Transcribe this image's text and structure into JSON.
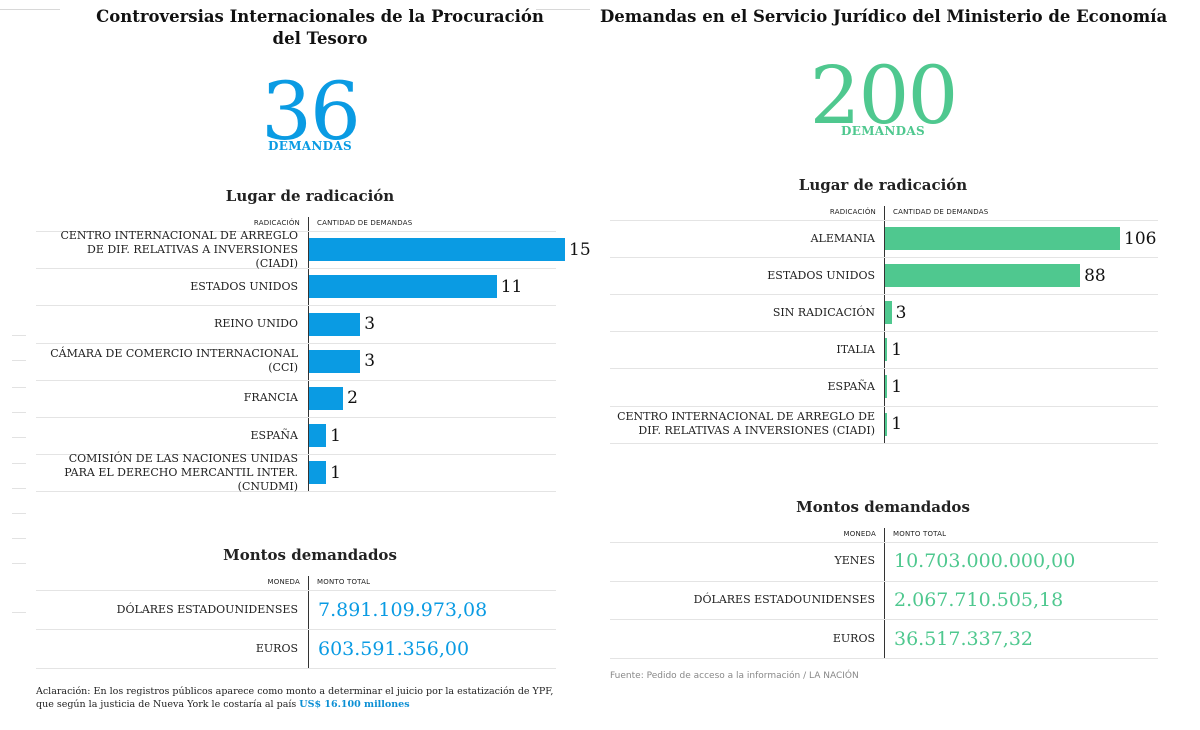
{
  "chart_data": [
    {
      "type": "bar",
      "orientation": "horizontal",
      "title": "Controversias Internacionales de la Procuración del Tesoro",
      "headline_value": "36",
      "headline_label": "DEMANDAS",
      "section_title": "Lugar de radicación",
      "category_header": "RADICACIÓN",
      "value_header": "CANTIDAD DE DEMANDAS",
      "color": "#0a9be3",
      "categories": [
        "CENTRO INTERNACIONAL DE ARREGLO DE DIF. RELATIVAS A INVERSIONES (CIADI)",
        "ESTADOS UNIDOS",
        "REINO UNIDO",
        "CÁMARA DE COMERCIO INTERNACIONAL (CCI)",
        "FRANCIA",
        "ESPAÑA",
        "COMISIÓN DE LAS NACIONES UNIDAS PARA EL DERECHO MERCANTIL INTER. (CNUDMI)"
      ],
      "values": [
        15,
        11,
        3,
        3,
        2,
        1,
        1
      ],
      "xlim": [
        0,
        15
      ],
      "amounts": {
        "section_title": "Montos demandados",
        "currency_header": "MONEDA",
        "amount_header": "MONTO TOTAL",
        "rows": [
          {
            "currency": "DÓLARES ESTADOUNIDENSES",
            "amount": "7.891.109.973,08"
          },
          {
            "currency": "EUROS",
            "amount": "603.591.356,00"
          }
        ]
      },
      "note": {
        "text": "Aclaración: En los registros públicos aparece como monto a determinar el juicio por la estatización de YPF, que según la justicia de Nueva York le costaría al país ",
        "highlight": "US$ 16.100 millones"
      }
    },
    {
      "type": "bar",
      "orientation": "horizontal",
      "title": "Demandas en el Servicio Jurídico del Ministerio de Economía",
      "headline_value": "200",
      "headline_label": "DEMANDAS",
      "section_title": "Lugar de radicación",
      "category_header": "RADICACIÓN",
      "value_header": "CANTIDAD DE DEMANDAS",
      "color": "#4fc88f",
      "categories": [
        "ALEMANIA",
        "ESTADOS UNIDOS",
        "SIN RADICACIÓN",
        "ITALIA",
        "ESPAÑA",
        "CENTRO INTERNACIONAL DE ARREGLO DE DIF. RELATIVAS A INVERSIONES (CIADI)"
      ],
      "values": [
        106,
        88,
        3,
        1,
        1,
        1
      ],
      "xlim": [
        0,
        106
      ],
      "amounts": {
        "section_title": "Montos demandados",
        "currency_header": "MONEDA",
        "amount_header": "MONTO TOTAL",
        "rows": [
          {
            "currency": "YENES",
            "amount": "10.703.000.000,00"
          },
          {
            "currency": "DÓLARES ESTADOUNIDENSES",
            "amount": "2.067.710.505,18"
          },
          {
            "currency": "EUROS",
            "amount": "36.517.337,32"
          }
        ]
      },
      "source": "Fuente: Pedido de acceso a la información / LA NACIÓN"
    }
  ]
}
